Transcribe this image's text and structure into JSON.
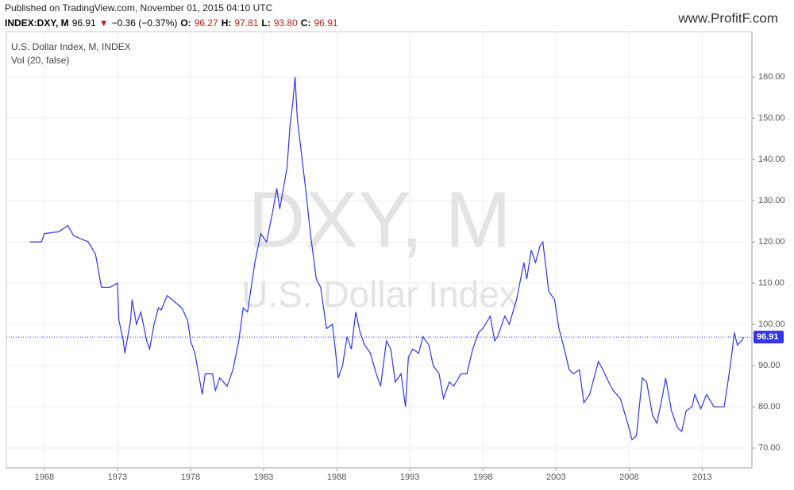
{
  "published": "Published on TradingView.com, November 01, 2015 04:10 UTC",
  "ticker_line": [
    {
      "text": "INDEX:DXY, M",
      "color": "#000000"
    },
    {
      "text": "96.91",
      "color": "#000000"
    },
    {
      "text": "▼",
      "color": "#c0201f"
    },
    {
      "text": "−0.36 (−0.37%)",
      "color": "#000000"
    },
    {
      "text": "O:",
      "color": "#000000"
    },
    {
      "text": "96.27",
      "color": "#c0201f"
    },
    {
      "text": "H:",
      "color": "#000000"
    },
    {
      "text": "97.81",
      "color": "#c0201f"
    },
    {
      "text": "L:",
      "color": "#000000"
    },
    {
      "text": "93.80",
      "color": "#c0201f"
    },
    {
      "text": "C:",
      "color": "#000000"
    },
    {
      "text": "96.91",
      "color": "#c0201f"
    }
  ],
  "logo": "www.ProfitF.com",
  "chart_data": {
    "type": "line",
    "title": "U.S. Dollar Index, M, INDEX",
    "subtitle": "Vol (20, false)",
    "watermark": [
      "DXY, M",
      "U.S. Dollar Index"
    ],
    "color": "#3333ee",
    "x": [
      1967.0,
      1967.8,
      1968.0,
      1969.0,
      1969.6,
      1970.0,
      1971.0,
      1971.5,
      1971.9,
      1972.5,
      1973.0,
      1973.1,
      1973.4,
      1973.5,
      1973.9,
      1974.0,
      1974.3,
      1974.6,
      1975.0,
      1975.2,
      1975.5,
      1975.8,
      1976.0,
      1976.4,
      1976.9,
      1977.4,
      1977.8,
      1978.0,
      1978.3,
      1978.8,
      1979.0,
      1979.5,
      1979.7,
      1980.0,
      1980.5,
      1980.9,
      1981.3,
      1981.6,
      1981.9,
      1982.4,
      1982.8,
      1983.2,
      1983.6,
      1983.9,
      1984.1,
      1984.6,
      1984.8,
      1985.0,
      1985.15,
      1985.3,
      1985.6,
      1985.9,
      1986.2,
      1986.6,
      1986.9,
      1987.3,
      1987.7,
      1987.9,
      1988.1,
      1988.4,
      1988.7,
      1989.0,
      1989.3,
      1989.6,
      1989.9,
      1990.3,
      1990.7,
      1991.0,
      1991.4,
      1991.7,
      1992.0,
      1992.4,
      1992.7,
      1992.9,
      1993.2,
      1993.6,
      1993.9,
      1994.3,
      1994.6,
      1995.0,
      1995.3,
      1995.7,
      1996.0,
      1996.5,
      1996.9,
      1997.3,
      1997.7,
      1998.0,
      1998.5,
      1998.8,
      1999.0,
      1999.5,
      1999.8,
      2000.3,
      2000.8,
      2001.0,
      2001.3,
      2001.6,
      2001.9,
      2002.1,
      2002.5,
      2002.9,
      2003.2,
      2003.5,
      2003.9,
      2004.2,
      2004.6,
      2004.9,
      2005.3,
      2005.9,
      2006.2,
      2006.6,
      2006.9,
      2007.4,
      2007.9,
      2008.2,
      2008.5,
      2008.9,
      2009.2,
      2009.6,
      2009.9,
      2010.3,
      2010.5,
      2010.9,
      2011.3,
      2011.6,
      2011.9,
      2012.3,
      2012.5,
      2012.9,
      2013.3,
      2013.8,
      2014.3,
      2014.5,
      2014.8,
      2015.0,
      2015.2,
      2015.4,
      2015.7,
      2015.83
    ],
    "values": [
      120,
      120,
      122,
      122.5,
      124,
      121.5,
      120,
      117,
      109,
      109,
      110,
      101,
      96,
      93,
      101,
      106,
      100,
      103,
      96,
      94,
      100,
      104,
      103.5,
      107,
      105.5,
      104,
      101,
      96,
      93,
      83,
      88,
      88,
      84,
      87,
      85,
      89,
      96,
      104,
      103,
      115,
      122,
      120,
      127,
      133,
      128,
      138,
      148,
      154,
      160,
      150,
      141,
      132,
      122,
      111,
      109,
      99,
      100,
      94,
      87,
      90,
      97,
      94,
      103,
      98,
      95,
      93,
      88,
      85,
      96,
      94,
      86,
      88,
      80,
      92,
      94,
      93,
      97,
      95,
      90,
      88,
      82,
      86,
      85,
      88,
      88,
      94,
      98,
      99,
      102,
      96,
      97,
      102,
      100,
      106,
      115,
      111,
      118,
      115,
      119,
      120,
      108,
      106,
      99,
      95,
      89,
      88,
      89,
      81,
      83,
      91,
      89,
      86,
      84,
      82,
      76,
      72,
      73,
      87,
      86,
      78,
      76,
      83,
      87,
      79,
      75,
      74,
      79,
      80,
      83,
      79.5,
      83,
      80,
      80,
      80,
      87,
      92,
      98,
      95,
      96,
      96.91
    ],
    "xlim": [
      1965.4,
      2016.4
    ],
    "ylim": [
      65.2,
      171
    ],
    "xticks": [
      1968,
      1973,
      1978,
      1983,
      1988,
      1993,
      1998,
      2003,
      2008,
      2013
    ],
    "yticks": [
      {
        "value": 70,
        "label": "70.00"
      },
      {
        "value": 80,
        "label": "80.00"
      },
      {
        "value": 90,
        "label": "90.00"
      },
      {
        "value": 100,
        "label": "100.00"
      },
      {
        "value": 110,
        "label": "110.00"
      },
      {
        "value": 120,
        "label": "120.00"
      },
      {
        "value": 130,
        "label": "130.00"
      },
      {
        "value": 140,
        "label": "140.00"
      },
      {
        "value": 150,
        "label": "150.00"
      },
      {
        "value": 160,
        "label": "160.00"
      }
    ],
    "grid": true
  }
}
